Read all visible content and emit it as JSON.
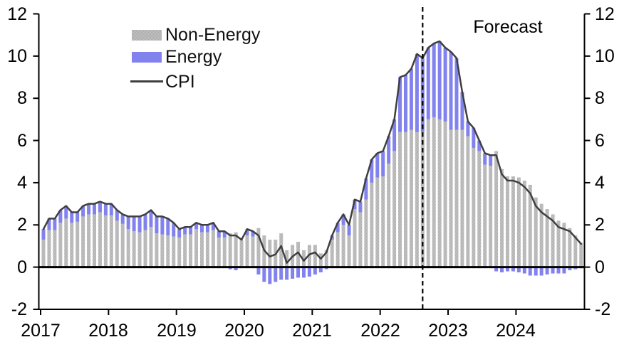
{
  "chart_data": {
    "type": "bar",
    "subtype": "stacked-contribution-bars-with-line",
    "title": "",
    "frequency": "monthly",
    "x_start": "2017-01",
    "x_end": "2024-12",
    "categories": [
      "2017-01",
      "2017-02",
      "2017-03",
      "2017-04",
      "2017-05",
      "2017-06",
      "2017-07",
      "2017-08",
      "2017-09",
      "2017-10",
      "2017-11",
      "2017-12",
      "2018-01",
      "2018-02",
      "2018-03",
      "2018-04",
      "2018-05",
      "2018-06",
      "2018-07",
      "2018-08",
      "2018-09",
      "2018-10",
      "2018-11",
      "2018-12",
      "2019-01",
      "2019-02",
      "2019-03",
      "2019-04",
      "2019-05",
      "2019-06",
      "2019-07",
      "2019-08",
      "2019-09",
      "2019-10",
      "2019-11",
      "2019-12",
      "2020-01",
      "2020-02",
      "2020-03",
      "2020-04",
      "2020-05",
      "2020-06",
      "2020-07",
      "2020-08",
      "2020-09",
      "2020-10",
      "2020-11",
      "2020-12",
      "2021-01",
      "2021-02",
      "2021-03",
      "2021-04",
      "2021-05",
      "2021-06",
      "2021-07",
      "2021-08",
      "2021-09",
      "2021-10",
      "2021-11",
      "2021-12",
      "2022-01",
      "2022-02",
      "2022-03",
      "2022-04",
      "2022-05",
      "2022-06",
      "2022-07",
      "2022-08",
      "2022-09",
      "2022-10",
      "2022-11",
      "2022-12",
      "2023-01",
      "2023-02",
      "2023-03",
      "2023-04",
      "2023-05",
      "2023-06",
      "2023-07",
      "2023-08",
      "2023-09",
      "2023-10",
      "2023-11",
      "2023-12",
      "2024-01",
      "2024-02",
      "2024-03",
      "2024-04",
      "2024-05",
      "2024-06",
      "2024-07",
      "2024-08",
      "2024-09",
      "2024-10",
      "2024-11",
      "2024-12"
    ],
    "series": [
      {
        "name": "Non-Energy",
        "type": "bar",
        "color": "#b0b0b0",
        "pattern": "dotted",
        "values": [
          1.3,
          1.75,
          1.75,
          2.1,
          2.3,
          2.1,
          2.15,
          2.4,
          2.5,
          2.5,
          2.6,
          2.45,
          2.45,
          2.2,
          2.05,
          1.8,
          1.7,
          1.65,
          1.75,
          1.9,
          1.6,
          1.55,
          1.5,
          1.45,
          1.4,
          1.55,
          1.55,
          1.8,
          1.65,
          1.65,
          1.75,
          1.4,
          1.4,
          1.6,
          1.65,
          1.3,
          1.5,
          1.45,
          1.85,
          1.5,
          1.3,
          1.3,
          1.6,
          0.8,
          1.05,
          1.2,
          0.8,
          1.05,
          1.05,
          0.65,
          0.8,
          1.3,
          1.65,
          2.0,
          1.5,
          2.75,
          2.6,
          3.2,
          4.0,
          4.25,
          4.3,
          4.9,
          5.5,
          6.4,
          6.4,
          6.5,
          6.4,
          6.4,
          7.0,
          7.1,
          7.0,
          6.9,
          6.5,
          6.5,
          6.5,
          6.2,
          5.65,
          5.5,
          4.85,
          4.8,
          5.5,
          4.65,
          4.3,
          4.3,
          4.25,
          4.1,
          3.9,
          3.3,
          3.0,
          2.75,
          2.5,
          2.2,
          2.1,
          1.85,
          1.5,
          1.15
        ]
      },
      {
        "name": "Energy",
        "type": "bar",
        "color": "#8282ef",
        "values": [
          0.5,
          0.55,
          0.55,
          0.6,
          0.6,
          0.5,
          0.45,
          0.5,
          0.5,
          0.5,
          0.5,
          0.55,
          0.55,
          0.5,
          0.45,
          0.6,
          0.7,
          0.75,
          0.75,
          0.8,
          0.8,
          0.85,
          0.8,
          0.65,
          0.4,
          0.35,
          0.35,
          0.3,
          0.35,
          0.35,
          0.35,
          0.3,
          0.3,
          -0.1,
          -0.15,
          0.0,
          0.3,
          0.25,
          -0.35,
          -0.7,
          -0.8,
          -0.7,
          -0.6,
          -0.6,
          -0.55,
          -0.5,
          -0.5,
          -0.45,
          -0.35,
          -0.25,
          -0.1,
          0.2,
          0.45,
          0.5,
          0.5,
          0.45,
          0.5,
          1.0,
          1.1,
          1.15,
          1.2,
          1.3,
          1.5,
          2.6,
          2.7,
          2.9,
          3.7,
          3.5,
          3.4,
          3.5,
          3.7,
          3.5,
          3.7,
          3.4,
          1.8,
          0.7,
          0.95,
          0.5,
          0.55,
          0.5,
          -0.2,
          -0.25,
          -0.2,
          -0.2,
          -0.25,
          -0.3,
          -0.4,
          -0.4,
          -0.4,
          -0.35,
          -0.3,
          -0.3,
          -0.3,
          -0.15,
          -0.1,
          -0.05
        ]
      },
      {
        "name": "CPI",
        "type": "line",
        "color": "#3f3f3f",
        "values": [
          1.8,
          2.3,
          2.3,
          2.7,
          2.9,
          2.6,
          2.6,
          2.9,
          3.0,
          3.0,
          3.1,
          3.0,
          3.0,
          2.7,
          2.5,
          2.4,
          2.4,
          2.4,
          2.5,
          2.7,
          2.4,
          2.4,
          2.3,
          2.1,
          1.8,
          1.9,
          1.9,
          2.1,
          2.0,
          2.0,
          2.1,
          1.7,
          1.7,
          1.5,
          1.5,
          1.3,
          1.8,
          1.7,
          1.5,
          0.8,
          0.5,
          0.6,
          1.0,
          0.2,
          0.5,
          0.7,
          0.3,
          0.6,
          0.7,
          0.4,
          0.7,
          1.5,
          2.1,
          2.5,
          2.0,
          3.2,
          3.1,
          4.2,
          5.1,
          5.4,
          5.5,
          6.2,
          7.0,
          9.0,
          9.1,
          9.4,
          10.1,
          9.9,
          10.4,
          10.6,
          10.7,
          10.4,
          10.2,
          9.9,
          8.3,
          6.9,
          6.6,
          6.0,
          5.4,
          5.3,
          5.3,
          4.4,
          4.1,
          4.1,
          4.0,
          3.8,
          3.5,
          2.9,
          2.6,
          2.4,
          2.2,
          1.9,
          1.8,
          1.7,
          1.4,
          1.1
        ]
      }
    ],
    "x_tick_labels": [
      "2017",
      "2018",
      "2019",
      "2020",
      "2021",
      "2022",
      "2023",
      "2024"
    ],
    "y_ticks": [
      12,
      10,
      8,
      6,
      4,
      2,
      0,
      -2
    ],
    "ylim": [
      -2,
      12
    ],
    "y_axis_sides": "both",
    "grid": false,
    "forecast": {
      "dashed_line_at": "2022-08",
      "dashed_line_index": 67,
      "label": "Forecast"
    },
    "annotations": [
      {
        "text": "Forecast"
      }
    ],
    "legend": {
      "position": "inside-top-left",
      "entries": [
        "Non-Energy",
        "Energy",
        "CPI"
      ]
    },
    "colors": {
      "non_energy_bar": "#b0b0b0",
      "non_energy_dot": "#c4c4c4",
      "energy_bar": "#8282ef",
      "cpi_line": "#3f3f3f",
      "axis": "#000000",
      "forecast_divider": "#000000"
    }
  }
}
